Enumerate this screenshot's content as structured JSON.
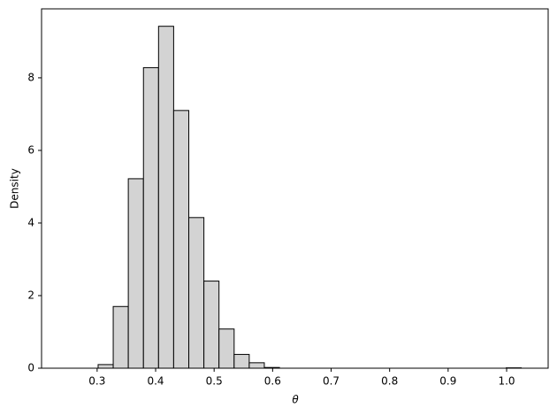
{
  "chart_data": {
    "type": "histogram",
    "xlabel": "θ",
    "ylabel": "Density",
    "bins": [
      0.25,
      0.2758,
      0.3017,
      0.3275,
      0.3533,
      0.3792,
      0.405,
      0.4308,
      0.4567,
      0.4825,
      0.5083,
      0.5342,
      0.56,
      0.5858,
      0.6117,
      0.6375,
      0.6633,
      0.6892,
      0.715,
      0.7408,
      0.7667,
      0.7925,
      0.8183,
      0.8442,
      0.87,
      0.8958,
      0.9217,
      0.9475,
      0.9733,
      0.9992,
      1.025
    ],
    "values": [
      0,
      0,
      0.1,
      1.7,
      5.22,
      8.28,
      9.42,
      7.1,
      4.15,
      2.4,
      1.08,
      0.38,
      0.15,
      0.02,
      0,
      0,
      0,
      0,
      0,
      0,
      0,
      0,
      0,
      0,
      0,
      0,
      0,
      0,
      0,
      0.01
    ],
    "color": "#d3d3d3",
    "edgecolor": "#000000",
    "xlim": [
      0.205,
      1.071
    ],
    "ylim": [
      0,
      9.9
    ],
    "xticks": [
      0.3,
      0.4,
      0.5,
      0.6,
      0.7,
      0.8,
      0.9,
      {
        "value": 1,
        "label": "1.0"
      }
    ],
    "yticks": [
      0,
      2,
      4,
      6,
      8
    ]
  }
}
